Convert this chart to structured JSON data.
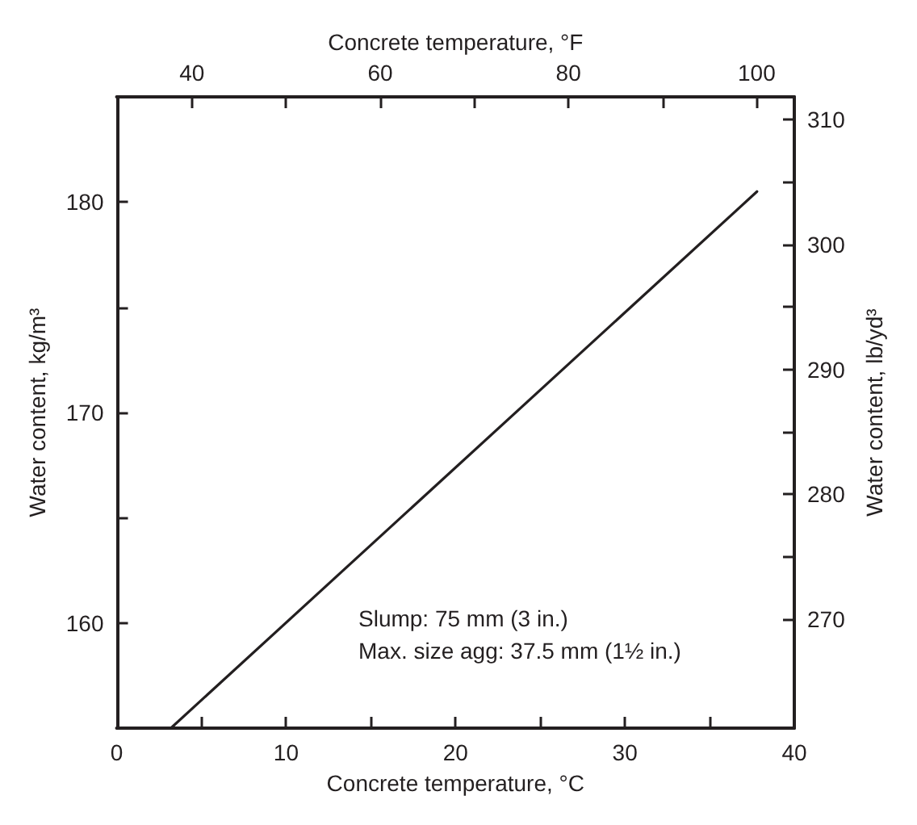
{
  "chart_data": {
    "type": "line",
    "xlabel": "Concrete temperature, °C",
    "x2label": "Concrete temperature, °F",
    "ylabel": "Water content, kg/m³",
    "y2label": "Water content, lb/yd³",
    "x": [
      3.2,
      37.8
    ],
    "series": [
      {
        "color": "#231f20",
        "values": [
          155,
          180.5
        ]
      }
    ],
    "xlim": [
      0,
      40
    ],
    "xticks": [
      0,
      {
        "value": 5,
        "label": null
      },
      10,
      {
        "value": 15,
        "label": null
      },
      20,
      {
        "value": 25,
        "label": null
      },
      30,
      {
        "value": 35,
        "label": null
      },
      40
    ],
    "x2lim": [
      32,
      104
    ],
    "x2ticks": [
      40,
      {
        "value": 50,
        "label": null
      },
      60,
      {
        "value": 70,
        "label": null
      },
      80,
      {
        "value": 90,
        "label": null
      },
      100
    ],
    "ylim": [
      155,
      185
    ],
    "yticks": [
      160,
      {
        "value": 165,
        "label": null
      },
      170,
      {
        "value": 175,
        "label": null
      },
      180
    ],
    "y2lim": [
      261.3,
      311.8
    ],
    "y2ticks": [
      270,
      {
        "value": 275,
        "label": null
      },
      280,
      {
        "value": 285,
        "label": null
      },
      290,
      {
        "value": 295,
        "label": null
      },
      300,
      {
        "value": 305,
        "label": null
      },
      310
    ],
    "annotations": [
      "Slump: 75 mm (3 in.)",
      "Max. size agg: 37.5 mm (1½ in.)"
    ],
    "marker": "none",
    "line_style": "solid",
    "grid": false
  }
}
